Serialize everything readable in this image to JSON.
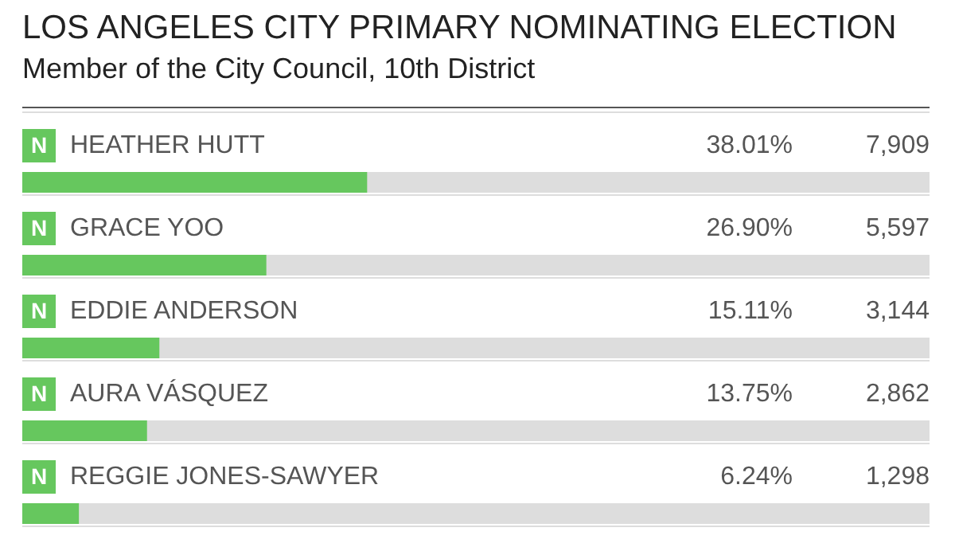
{
  "chart_data": {
    "type": "bar",
    "orientation": "horizontal",
    "title": "LOS ANGELES CITY PRIMARY NOMINATING ELECTION",
    "subtitle": "Member of the City Council, 10th District",
    "categories": [
      "HEATHER HUTT",
      "GRACE YOO",
      "EDDIE ANDERSON",
      "AURA VÁSQUEZ",
      "REGGIE JONES-SAWYER"
    ],
    "values": [
      38.01,
      26.9,
      15.11,
      13.75,
      6.24
    ],
    "value_labels": [
      "38.01%",
      "26.90%",
      "15.11%",
      "13.75%",
      "6.24%"
    ],
    "color": "#66c75e",
    "xlim": [
      0,
      100
    ],
    "tick_labels": false,
    "annotations": [
      "N",
      "7,909",
      "N",
      "5,597",
      "N",
      "3,144",
      "N",
      "2,862",
      "N",
      "1,298"
    ]
  }
}
